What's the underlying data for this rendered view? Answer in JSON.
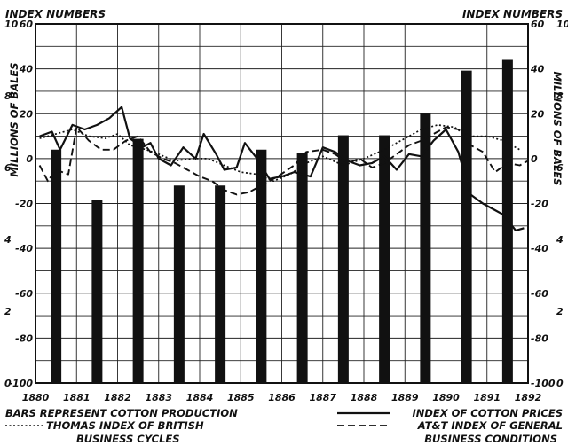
{
  "chart_data": {
    "type": "bar+line",
    "header_left": "INDEX NUMBERS",
    "header_right": "INDEX NUMBERS",
    "left_axis_label": "MILLIONS OF BALES",
    "right_axis_label": "MILLIONS OF BALES",
    "x_ticks": [
      "1880",
      "1881",
      "1882",
      "1883",
      "1884",
      "1885",
      "1886",
      "1887",
      "1888",
      "1889",
      "1890",
      "1891",
      "1892"
    ],
    "index_ticks": [
      "60",
      "40",
      "20",
      "0",
      "-20",
      "-40",
      "-60",
      "-80",
      "-100"
    ],
    "index_ylim": [
      -100,
      60
    ],
    "bales_ticks": [
      "10",
      "8",
      "6",
      "4",
      "2",
      "0"
    ],
    "bales_ylim": [
      0,
      10
    ],
    "bars_note": "BARS REPRESENT COTTON PRODUCTION",
    "bars": [
      {
        "x": 1880.5,
        "value": 6.5
      },
      {
        "x": 1881.5,
        "value": 5.1
      },
      {
        "x": 1882.5,
        "value": 6.8
      },
      {
        "x": 1883.5,
        "value": 5.5
      },
      {
        "x": 1884.5,
        "value": 5.5
      },
      {
        "x": 1885.5,
        "value": 6.5
      },
      {
        "x": 1886.5,
        "value": 6.4
      },
      {
        "x": 1887.5,
        "value": 6.9
      },
      {
        "x": 1888.5,
        "value": 6.9
      },
      {
        "x": 1889.5,
        "value": 7.5
      },
      {
        "x": 1890.5,
        "value": 8.7
      },
      {
        "x": 1891.5,
        "value": 9.0
      }
    ],
    "series": [
      {
        "name": "INDEX OF COTTON PRICES",
        "style": "solid",
        "points": [
          [
            1880.1,
            10
          ],
          [
            1880.4,
            12
          ],
          [
            1880.6,
            4
          ],
          [
            1880.9,
            15
          ],
          [
            1881.2,
            13
          ],
          [
            1881.5,
            15
          ],
          [
            1881.8,
            18
          ],
          [
            1882.1,
            23
          ],
          [
            1882.3,
            9
          ],
          [
            1882.6,
            5
          ],
          [
            1882.8,
            7
          ],
          [
            1883.0,
            0
          ],
          [
            1883.3,
            -3
          ],
          [
            1883.6,
            5
          ],
          [
            1883.9,
            0
          ],
          [
            1884.1,
            11
          ],
          [
            1884.4,
            2
          ],
          [
            1884.6,
            -5
          ],
          [
            1884.9,
            -4
          ],
          [
            1885.1,
            7
          ],
          [
            1885.4,
            0
          ],
          [
            1885.7,
            -9
          ],
          [
            1886.0,
            -8
          ],
          [
            1886.3,
            -6
          ],
          [
            1886.7,
            -8
          ],
          [
            1887.0,
            5
          ],
          [
            1887.3,
            3
          ],
          [
            1887.6,
            -1
          ],
          [
            1887.9,
            -3
          ],
          [
            1888.2,
            -2
          ],
          [
            1888.5,
            1
          ],
          [
            1888.8,
            -5
          ],
          [
            1889.1,
            2
          ],
          [
            1889.4,
            1
          ],
          [
            1889.7,
            8
          ],
          [
            1890.0,
            13
          ],
          [
            1890.3,
            3
          ],
          [
            1890.6,
            -16
          ],
          [
            1890.9,
            -20
          ],
          [
            1891.1,
            -22
          ],
          [
            1891.4,
            -25
          ],
          [
            1891.7,
            -32
          ],
          [
            1891.9,
            -31
          ]
        ]
      },
      {
        "name": "THOMAS INDEX OF BRITISH BUSINESS CYCLES",
        "style": "dotted",
        "points": [
          [
            1880.1,
            9
          ],
          [
            1880.5,
            11
          ],
          [
            1880.9,
            13
          ],
          [
            1881.3,
            10
          ],
          [
            1881.7,
            9
          ],
          [
            1882.0,
            11
          ],
          [
            1882.3,
            6
          ],
          [
            1882.7,
            4
          ],
          [
            1883.0,
            2
          ],
          [
            1883.4,
            -1
          ],
          [
            1883.8,
            0
          ],
          [
            1884.2,
            0
          ],
          [
            1884.6,
            -3
          ],
          [
            1885.0,
            -6
          ],
          [
            1885.4,
            -7
          ],
          [
            1885.8,
            -10
          ],
          [
            1886.2,
            -7
          ],
          [
            1886.6,
            -2
          ],
          [
            1887.0,
            1
          ],
          [
            1887.5,
            -3
          ],
          [
            1888.0,
            0
          ],
          [
            1888.5,
            4
          ],
          [
            1889.0,
            9
          ],
          [
            1889.4,
            13
          ],
          [
            1889.8,
            15
          ],
          [
            1890.2,
            14
          ],
          [
            1890.6,
            10
          ],
          [
            1891.0,
            10
          ],
          [
            1891.4,
            8
          ],
          [
            1891.8,
            4
          ]
        ]
      },
      {
        "name": "AT&T INDEX OF GENERAL BUSINESS CONDITIONS",
        "style": "dashed",
        "points": [
          [
            1880.1,
            -3
          ],
          [
            1880.3,
            -10
          ],
          [
            1880.5,
            -5
          ],
          [
            1880.8,
            -7
          ],
          [
            1881.0,
            14
          ],
          [
            1881.3,
            8
          ],
          [
            1881.6,
            4
          ],
          [
            1881.9,
            4
          ],
          [
            1882.2,
            8
          ],
          [
            1882.5,
            10
          ],
          [
            1882.8,
            3
          ],
          [
            1883.1,
            0
          ],
          [
            1883.4,
            -2
          ],
          [
            1883.7,
            -5
          ],
          [
            1884.0,
            -8
          ],
          [
            1884.3,
            -10
          ],
          [
            1884.6,
            -14
          ],
          [
            1884.9,
            -16
          ],
          [
            1885.2,
            -15
          ],
          [
            1885.5,
            -12
          ],
          [
            1885.9,
            -8
          ],
          [
            1886.3,
            -3
          ],
          [
            1886.6,
            3
          ],
          [
            1887.0,
            4
          ],
          [
            1887.3,
            2
          ],
          [
            1887.6,
            -2
          ],
          [
            1887.9,
            0
          ],
          [
            1888.2,
            -4
          ],
          [
            1888.5,
            -2
          ],
          [
            1888.8,
            2
          ],
          [
            1889.1,
            6
          ],
          [
            1889.4,
            8
          ],
          [
            1889.7,
            11
          ],
          [
            1890.0,
            14
          ],
          [
            1890.3,
            13
          ],
          [
            1890.6,
            6
          ],
          [
            1890.9,
            3
          ],
          [
            1891.2,
            -6
          ],
          [
            1891.5,
            -2
          ],
          [
            1891.8,
            -3
          ],
          [
            1892.0,
            -1
          ]
        ]
      }
    ],
    "legend_left": [
      "BARS REPRESENT COTTON PRODUCTION",
      "THOMAS INDEX OF BRITISH",
      "BUSINESS CYCLES"
    ],
    "legend_right": [
      "INDEX OF COTTON PRICES",
      "AT&T INDEX OF GENERAL",
      "BUSINESS CONDITIONS"
    ],
    "grid": true
  }
}
